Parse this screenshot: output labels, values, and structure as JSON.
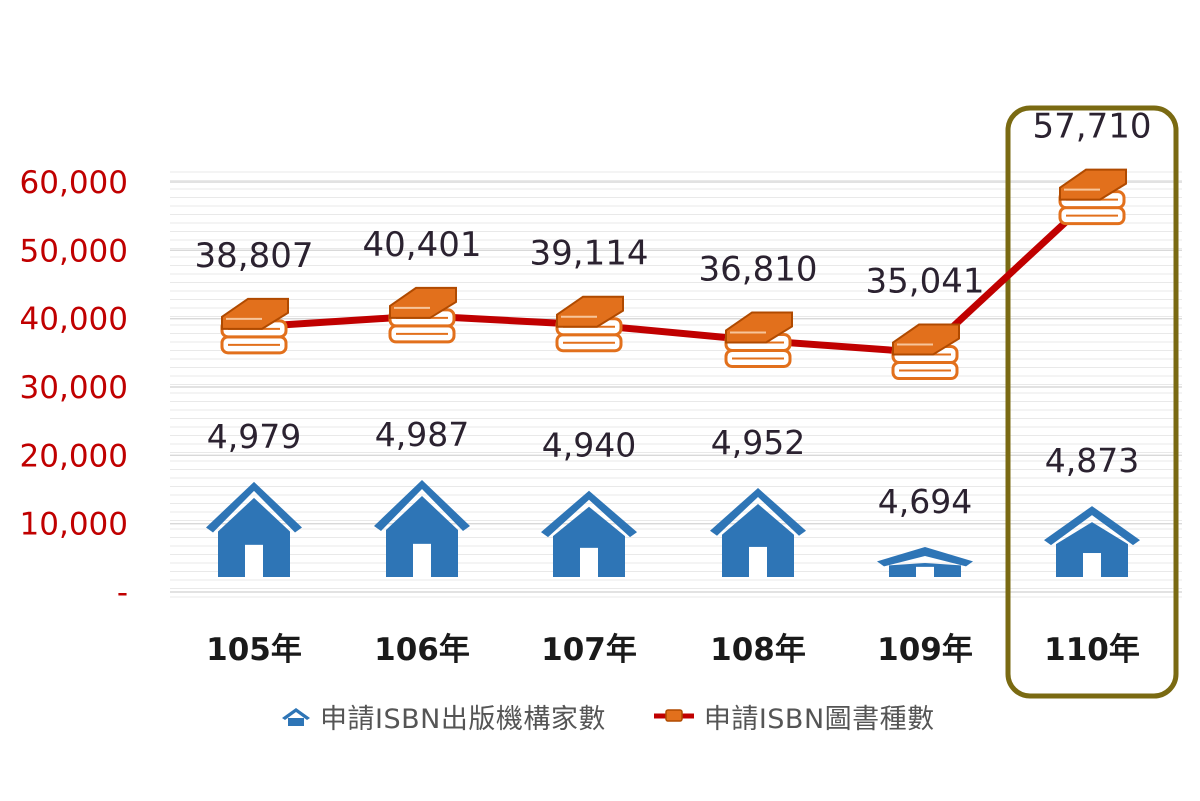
{
  "chart_data": {
    "type": "bar",
    "categories": [
      "105年",
      "106年",
      "107年",
      "108年",
      "109年",
      "110年"
    ],
    "y_ticks": [
      "60,000",
      "50,000",
      "40,000",
      "30,000",
      "20,000",
      "10,000",
      "-"
    ],
    "ylim": [
      0,
      60000
    ],
    "grid": true,
    "highlight_category": "110年",
    "series": [
      {
        "name": "申請ISBN出版機構家數",
        "kind": "icon-bar",
        "icon": "house-icon",
        "color": "#2E75B6",
        "values": [
          4979,
          4987,
          4940,
          4952,
          4694,
          4873
        ],
        "labels": [
          "4,979",
          "4,987",
          "4,940",
          "4,952",
          "4,694",
          "4,873"
        ]
      },
      {
        "name": "申請ISBN圖書種數",
        "kind": "line",
        "marker": "books-icon",
        "color": "#C00000",
        "values": [
          38807,
          40401,
          39114,
          36810,
          35041,
          57710
        ],
        "labels": [
          "38,807",
          "40,401",
          "39,114",
          "36,810",
          "35,041",
          "57,710"
        ]
      }
    ],
    "legend_position": "bottom"
  },
  "colors": {
    "axis_text": "#C00000",
    "category_text": "#1a1a1a",
    "label_text": "#2b2230",
    "highlight_border": "#7A6A12",
    "book_orange": "#E2701C"
  }
}
